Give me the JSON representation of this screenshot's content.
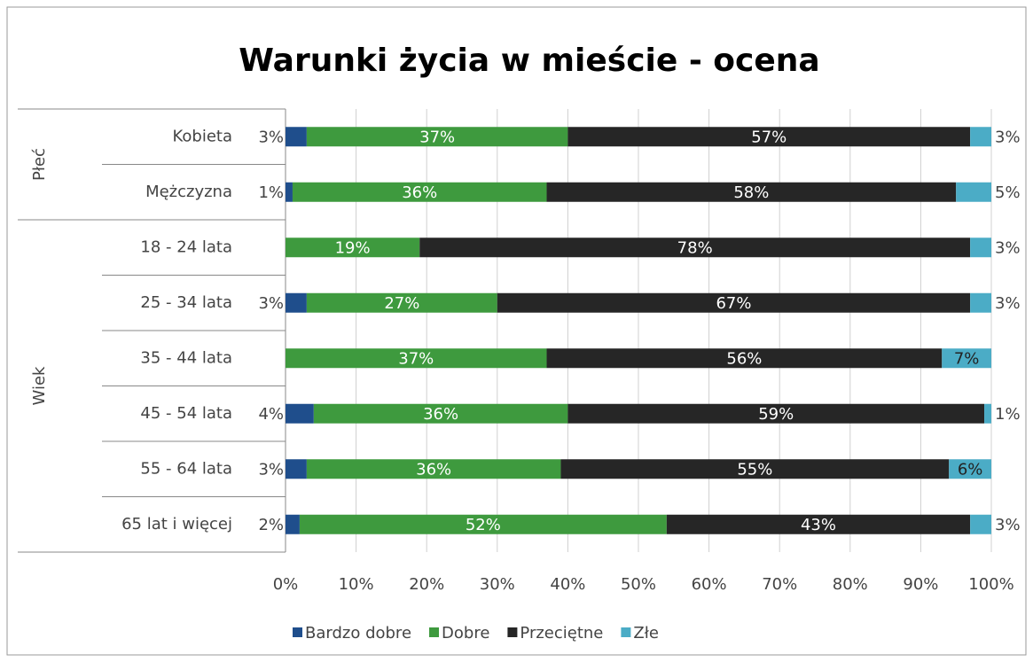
{
  "chart_data": {
    "type": "stacked-barh",
    "title": "Warunki życia w mieście - ocena",
    "categories": [
      "Kobieta",
      "Mężczyzna",
      "18 - 24 lata",
      "25 - 34 lata",
      "35 - 44 lata",
      "45 - 54 lata",
      "55 - 64 lata",
      "65 lat i więcej"
    ],
    "groups": [
      {
        "name": "Płeć",
        "size": 2
      },
      {
        "name": "Wiek",
        "size": 6
      }
    ],
    "series": [
      {
        "name": "Bardzo dobre",
        "color": "#1f4e8c",
        "values": [
          3,
          1,
          0,
          3,
          0,
          4,
          3,
          2
        ],
        "value_labels": [
          "3%",
          "1%",
          null,
          "3%",
          null,
          "4%",
          "3%",
          "2%"
        ]
      },
      {
        "name": "Dobre",
        "color": "#3e9a3e",
        "values": [
          37,
          36,
          19,
          27,
          37,
          36,
          36,
          52
        ],
        "value_labels": [
          "37%",
          "36%",
          "19%",
          "27%",
          "37%",
          "36%",
          "36%",
          "52%"
        ]
      },
      {
        "name": "Przeciętne",
        "color": "#262626",
        "values": [
          57,
          58,
          78,
          67,
          56,
          59,
          55,
          43
        ],
        "value_labels": [
          "57%",
          "58%",
          "78%",
          "67%",
          "56%",
          "59%",
          "55%",
          "43%"
        ]
      },
      {
        "name": "Złe",
        "color": "#4bacc6",
        "values": [
          3,
          5,
          3,
          3,
          7,
          1,
          6,
          3
        ],
        "value_labels": [
          "3%",
          "5%",
          "3%",
          "3%",
          "7%",
          "1%",
          "6%",
          "3%"
        ]
      }
    ],
    "xlim": [
      0,
      100
    ],
    "xticks": [
      {
        "value": 0,
        "label": "0%"
      },
      {
        "value": 10,
        "label": "10%"
      },
      {
        "value": 20,
        "label": "20%"
      },
      {
        "value": 30,
        "label": "30%"
      },
      {
        "value": 40,
        "label": "40%"
      },
      {
        "value": 50,
        "label": "50%"
      },
      {
        "value": 60,
        "label": "60%"
      },
      {
        "value": 70,
        "label": "70%"
      },
      {
        "value": 80,
        "label": "80%"
      },
      {
        "value": 90,
        "label": "90%"
      },
      {
        "value": 100,
        "label": "100%"
      }
    ],
    "grid": true,
    "legend": "bottom"
  }
}
